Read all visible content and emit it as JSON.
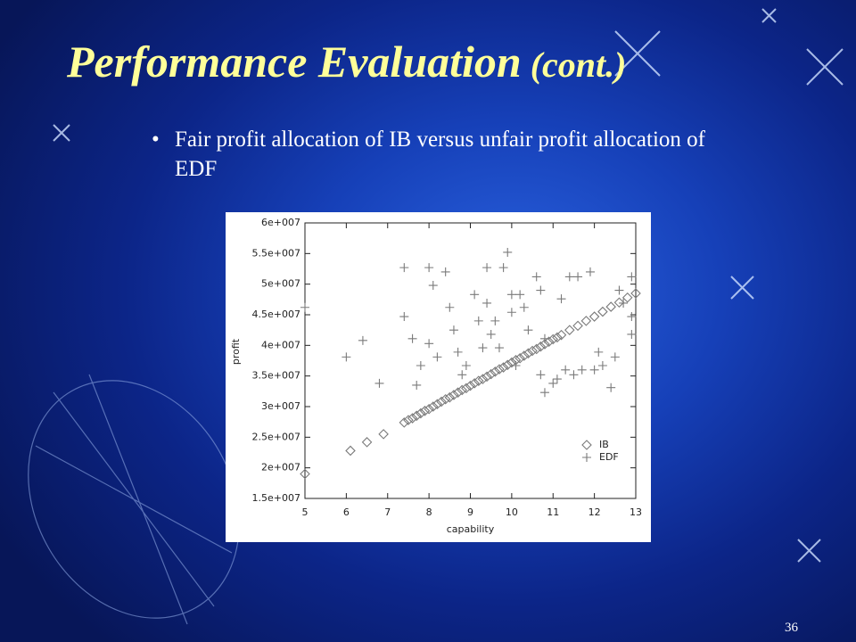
{
  "slide": {
    "title": "Performance Evaluation",
    "title_suffix": "(cont.)",
    "bullets": [
      "Fair profit allocation of IB versus unfair profit allocation of EDF"
    ],
    "page_number": "36"
  },
  "chart_data": {
    "type": "scatter",
    "xlabel": "capability",
    "ylabel": "profit",
    "xlim": [
      5,
      13
    ],
    "xticks": [
      5,
      6,
      7,
      8,
      9,
      10,
      11,
      12,
      13
    ],
    "ylim": [
      15000000,
      60000000
    ],
    "yticks": [
      {
        "value": 15000000,
        "label": "1.5e+007"
      },
      {
        "value": 20000000,
        "label": "2e+007"
      },
      {
        "value": 25000000,
        "label": "2.5e+007"
      },
      {
        "value": 30000000,
        "label": "3e+007"
      },
      {
        "value": 35000000,
        "label": "3.5e+007"
      },
      {
        "value": 40000000,
        "label": "4e+007"
      },
      {
        "value": 45000000,
        "label": "4.5e+007"
      },
      {
        "value": 50000000,
        "label": "5e+007"
      },
      {
        "value": 55000000,
        "label": "5.5e+007"
      },
      {
        "value": 60000000,
        "label": "6e+007"
      }
    ],
    "legend": "lower right",
    "series": [
      {
        "name": "IB",
        "color": "#7a7a7a",
        "marker": "diamond",
        "x": [
          5.0,
          6.1,
          6.5,
          6.9,
          7.4,
          7.5,
          7.6,
          7.7,
          7.8,
          7.9,
          8.0,
          8.1,
          8.2,
          8.3,
          8.4,
          8.5,
          8.6,
          8.7,
          8.8,
          8.9,
          9.0,
          9.1,
          9.2,
          9.3,
          9.4,
          9.5,
          9.6,
          9.7,
          9.8,
          9.9,
          10.0,
          10.1,
          10.2,
          10.3,
          10.4,
          10.5,
          10.6,
          10.7,
          10.8,
          10.9,
          11.0,
          11.1,
          11.2,
          11.4,
          11.6,
          11.8,
          12.0,
          12.2,
          12.4,
          12.6,
          12.8,
          13.0
        ],
        "values": [
          19000000,
          22800000,
          24200000,
          25500000,
          27400000,
          27800000,
          28100000,
          28500000,
          28900000,
          29300000,
          29600000,
          30000000,
          30400000,
          30800000,
          31200000,
          31500000,
          31900000,
          32300000,
          32700000,
          33000000,
          33400000,
          33800000,
          34200000,
          34500000,
          34900000,
          35300000,
          35700000,
          36100000,
          36400000,
          36800000,
          37200000,
          37600000,
          37900000,
          38300000,
          38700000,
          39100000,
          39400000,
          39800000,
          40200000,
          40600000,
          41000000,
          41300000,
          41700000,
          42500000,
          43200000,
          44000000,
          44700000,
          45500000,
          46300000,
          47000000,
          47800000,
          48500000
        ]
      },
      {
        "name": "EDF",
        "color": "#7a7a7a",
        "marker": "plus",
        "x": [
          5.0,
          6.0,
          6.4,
          6.8,
          7.4,
          7.6,
          7.4,
          7.7,
          7.8,
          8.0,
          8.1,
          8.0,
          8.2,
          8.4,
          8.5,
          8.6,
          8.7,
          8.8,
          8.9,
          9.1,
          9.2,
          9.3,
          9.4,
          9.4,
          9.5,
          9.6,
          9.7,
          9.8,
          9.9,
          10.0,
          10.0,
          10.1,
          10.2,
          10.3,
          10.4,
          10.6,
          10.7,
          10.7,
          10.8,
          10.8,
          11.0,
          11.1,
          11.2,
          11.3,
          11.4,
          11.5,
          11.6,
          11.7,
          11.9,
          12.0,
          12.1,
          12.2,
          12.4,
          12.5,
          12.6,
          12.7,
          12.9,
          12.9,
          12.9
        ],
        "values": [
          46200000,
          38100000,
          40800000,
          33800000,
          52700000,
          41100000,
          44700000,
          33500000,
          36700000,
          52700000,
          49800000,
          40300000,
          38100000,
          52000000,
          46200000,
          42500000,
          38900000,
          35200000,
          36700000,
          48300000,
          44000000,
          39600000,
          52700000,
          46900000,
          41800000,
          44000000,
          39600000,
          52700000,
          55200000,
          48300000,
          45400000,
          36700000,
          48300000,
          46200000,
          42500000,
          51200000,
          49000000,
          35200000,
          32300000,
          41100000,
          33800000,
          34500000,
          47600000,
          36000000,
          51200000,
          35200000,
          51200000,
          36000000,
          52000000,
          36000000,
          38900000,
          36700000,
          33100000,
          38100000,
          49000000,
          46900000,
          51200000,
          41800000,
          44700000
        ]
      }
    ]
  }
}
